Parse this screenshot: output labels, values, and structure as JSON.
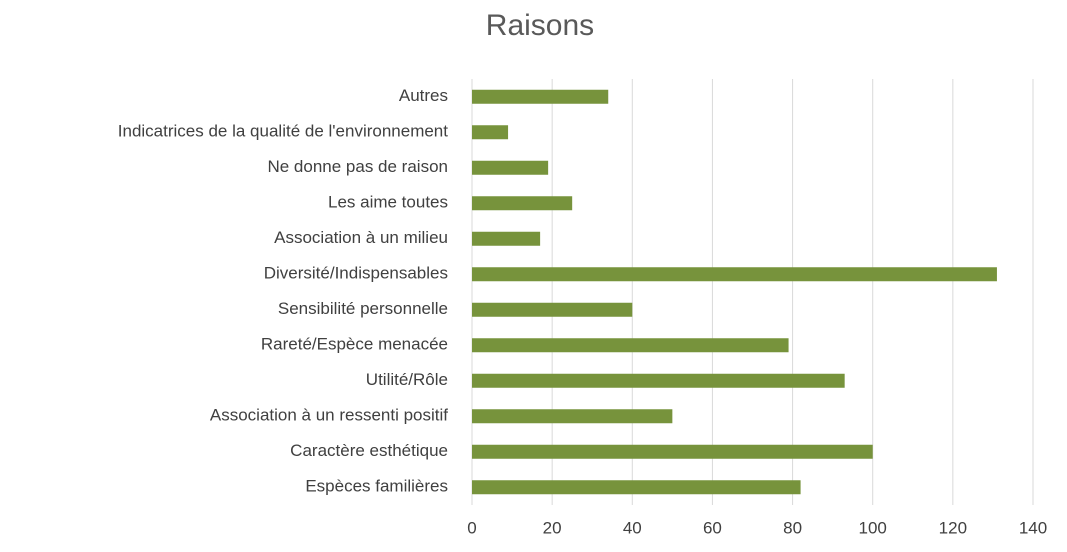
{
  "chart_data": {
    "type": "bar",
    "orientation": "horizontal",
    "title": "Raisons",
    "categories": [
      "Espèces familières",
      "Caractère esthétique",
      "Association à un ressenti positif",
      "Utilité/Rôle",
      "Rareté/Espèce menacée",
      "Sensibilité personnelle",
      "Diversité/Indispensables",
      "Association à un milieu",
      "Les aime toutes",
      "Ne donne pas de raison",
      "Indicatrices de la qualité de l'environnement",
      "Autres"
    ],
    "values": [
      82,
      100,
      50,
      93,
      79,
      40,
      131,
      17,
      25,
      19,
      9,
      34
    ],
    "color": "#77933c",
    "xlim": [
      0,
      140
    ],
    "xticks": [
      0,
      20,
      40,
      60,
      80,
      100,
      120,
      140
    ],
    "grid": true
  }
}
